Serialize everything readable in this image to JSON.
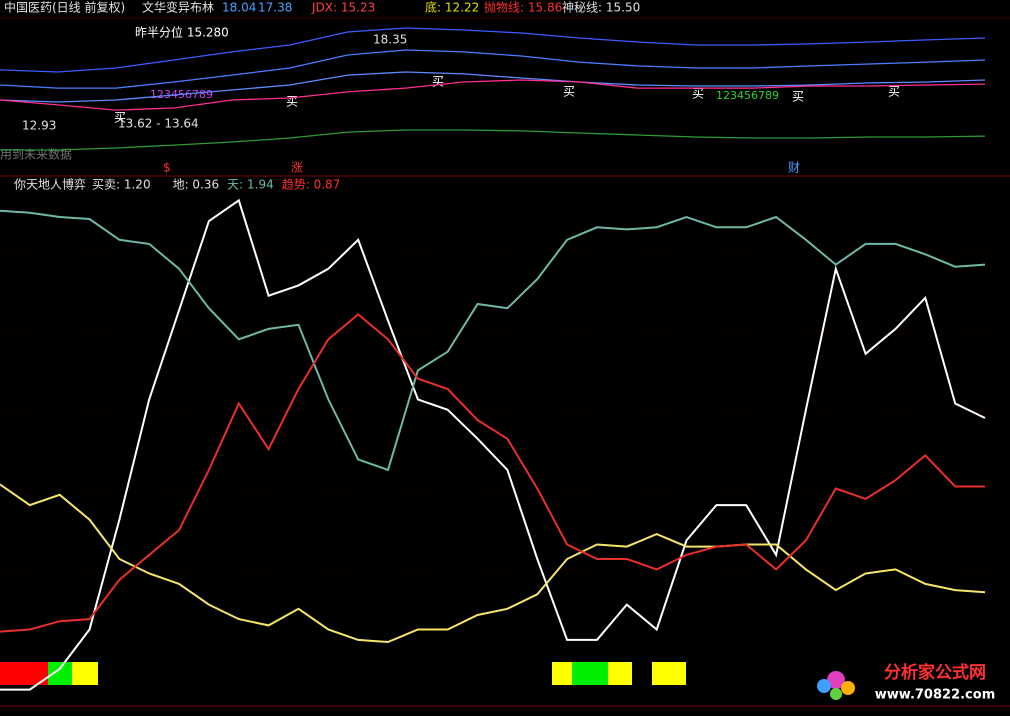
{
  "chart_data": [
    {
      "type": "line",
      "stock": "中国医药(日线 前复权)",
      "title": "文华变异布林",
      "indicators": [
        "18.04",
        "17.38",
        "JDX: 15.23",
        "底: 12.22",
        "抛物线: 15.86",
        "神秘线: 15.50"
      ],
      "annotations": [
        "昨半分位 15.280",
        "18.35",
        "12.93",
        "13.62 - 13.64",
        "用到未来数据",
        "$",
        "涨",
        "财",
        "买",
        "买",
        "买",
        "买",
        "买",
        "买",
        "买",
        "123456789",
        "123456789"
      ],
      "ylim": [
        10.75,
        19.47
      ],
      "series": [
        {
          "color": "#3b5bff",
          "values": [
            16.36,
            16.23,
            16.48,
            16.98,
            17.48,
            17.91,
            18.72,
            18.97,
            18.85,
            18.66,
            18.35,
            18.1,
            17.91,
            17.91,
            17.98,
            18.1,
            18.23,
            18.35
          ]
        },
        {
          "color": "#4a7dff",
          "values": [
            15.42,
            15.23,
            15.23,
            15.61,
            16.04,
            16.48,
            17.29,
            17.6,
            17.48,
            17.23,
            16.85,
            16.61,
            16.48,
            16.48,
            16.61,
            16.73,
            16.85,
            16.98
          ]
        },
        {
          "color": "#5c8cff",
          "values": [
            14.49,
            14.36,
            14.49,
            14.8,
            15.11,
            15.42,
            16.04,
            16.23,
            16.11,
            15.86,
            15.61,
            15.42,
            15.36,
            15.36,
            15.42,
            15.55,
            15.61,
            15.73
          ]
        },
        {
          "color": "#ff2f8f",
          "values": [
            14.49,
            14.18,
            13.86,
            13.99,
            14.49,
            14.61,
            14.99,
            15.23,
            15.61,
            15.73,
            15.61,
            15.23,
            15.23,
            15.23,
            15.36,
            15.36,
            15.42,
            15.48
          ]
        },
        {
          "color": "#2e9a35",
          "values": [
            11.37,
            11.37,
            11.5,
            11.68,
            11.87,
            12.12,
            12.49,
            12.62,
            12.62,
            12.56,
            12.43,
            12.31,
            12.18,
            12.12,
            12.12,
            12.18,
            12.18,
            12.24
          ]
        }
      ]
    },
    {
      "type": "line",
      "title": "你天地人博弈",
      "ylim": [
        -0.16,
        2.3
      ],
      "series": [
        {
          "name": "买卖: 1.20",
          "color": "#ffffff",
          "values": [
            -0.11,
            -0.11,
            -0.01,
            0.18,
            0.71,
            1.29,
            1.72,
            2.15,
            2.25,
            1.79,
            1.84,
            1.92,
            2.06,
            1.67,
            1.29,
            1.24,
            1.1,
            0.95,
            0.52,
            0.13,
            0.13,
            0.3,
            0.18,
            0.61,
            0.78,
            0.78,
            0.54,
            1.24,
            1.92,
            1.51,
            1.63,
            1.78,
            1.27,
            1.2
          ]
        },
        {
          "name": "地: 0.36",
          "color": "#f5e66a",
          "values": [
            0.88,
            0.78,
            0.83,
            0.71,
            0.52,
            0.45,
            0.4,
            0.3,
            0.23,
            0.2,
            0.28,
            0.18,
            0.13,
            0.12,
            0.18,
            0.18,
            0.25,
            0.28,
            0.35,
            0.52,
            0.59,
            0.58,
            0.64,
            0.58,
            0.58,
            0.59,
            0.59,
            0.47,
            0.37,
            0.45,
            0.47,
            0.4,
            0.37,
            0.36
          ]
        },
        {
          "name": "天: 1.94",
          "color": "#6fb8a8",
          "values": [
            2.2,
            2.19,
            2.17,
            2.16,
            2.06,
            2.04,
            1.92,
            1.73,
            1.58,
            1.63,
            1.65,
            1.29,
            1.0,
            0.95,
            1.43,
            1.52,
            1.75,
            1.73,
            1.87,
            2.06,
            2.12,
            2.11,
            2.12,
            2.17,
            2.12,
            2.12,
            2.17,
            2.06,
            1.94,
            2.04,
            2.04,
            1.99,
            1.93,
            1.94
          ]
        },
        {
          "name": "趋势: 0.87",
          "color": "#e8302a",
          "values": [
            0.17,
            0.18,
            0.22,
            0.23,
            0.42,
            0.54,
            0.66,
            0.95,
            1.27,
            1.05,
            1.34,
            1.58,
            1.7,
            1.58,
            1.39,
            1.34,
            1.19,
            1.1,
            0.86,
            0.59,
            0.52,
            0.52,
            0.47,
            0.54,
            0.58,
            0.59,
            0.47,
            0.61,
            0.86,
            0.81,
            0.9,
            1.02,
            0.87,
            0.87
          ]
        }
      ]
    }
  ],
  "watermark": {
    "name": "分析家公式网",
    "url": "www.70822.com"
  }
}
